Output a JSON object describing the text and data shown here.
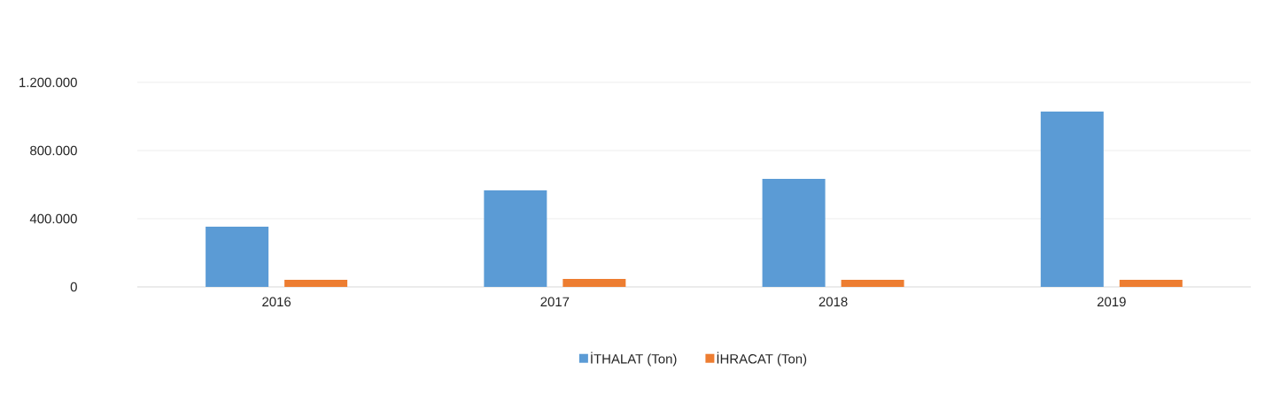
{
  "chart_data": {
    "type": "bar",
    "categories": [
      "2016",
      "2017",
      "2018",
      "2019"
    ],
    "series": [
      {
        "name": "İTHALAT (Ton)",
        "color": "#5b9bd5",
        "values": [
          353000,
          566000,
          634000,
          1029000
        ]
      },
      {
        "name": "İHRACAT (Ton)",
        "color": "#ed7d31",
        "values": [
          42000,
          47000,
          42000,
          42000
        ]
      }
    ],
    "ylim": [
      0,
      1200000
    ],
    "yticks": [
      {
        "value": 0,
        "label": "0"
      },
      {
        "value": 400000,
        "label": "400.000"
      },
      {
        "value": 800000,
        "label": "800.000"
      },
      {
        "value": 1200000,
        "label": "1.200.000"
      }
    ],
    "grid": "y",
    "legend": "bottom"
  }
}
